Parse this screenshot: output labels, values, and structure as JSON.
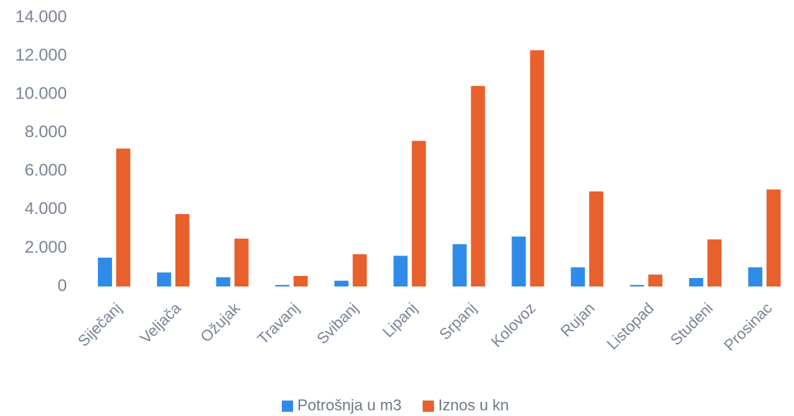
{
  "chart_data": {
    "type": "bar",
    "categories": [
      "Siječanj",
      "Veljača",
      "Ožujak",
      "Travanj",
      "Svibanj",
      "Lipanj",
      "Srpanj",
      "Kolovoz",
      "Rujan",
      "Listopad",
      "Studeni",
      "Prosinac"
    ],
    "series": [
      {
        "name": "Potrošnja u m3",
        "color": "#2e8ce8",
        "values": [
          1500,
          730,
          480,
          80,
          300,
          1600,
          2200,
          2600,
          1000,
          80,
          440,
          1000
        ]
      },
      {
        "name": "Iznos u kn",
        "color": "#e8602c",
        "values": [
          7180,
          3770,
          2490,
          550,
          1680,
          7580,
          10440,
          12300,
          4950,
          620,
          2450,
          5050
        ]
      }
    ],
    "ylim": [
      0,
      14000
    ],
    "yticks": [
      0,
      {
        "value": 2000,
        "label": "2.000"
      },
      {
        "value": 4000,
        "label": "4.000"
      },
      {
        "value": 6000,
        "label": "6.000"
      },
      {
        "value": 8000,
        "label": "8.000"
      },
      {
        "value": 10000,
        "label": "10.000"
      },
      {
        "value": 12000,
        "label": "12.000"
      },
      {
        "value": 14000,
        "label": "14.000"
      }
    ],
    "grid": false,
    "legend": "bottom"
  }
}
